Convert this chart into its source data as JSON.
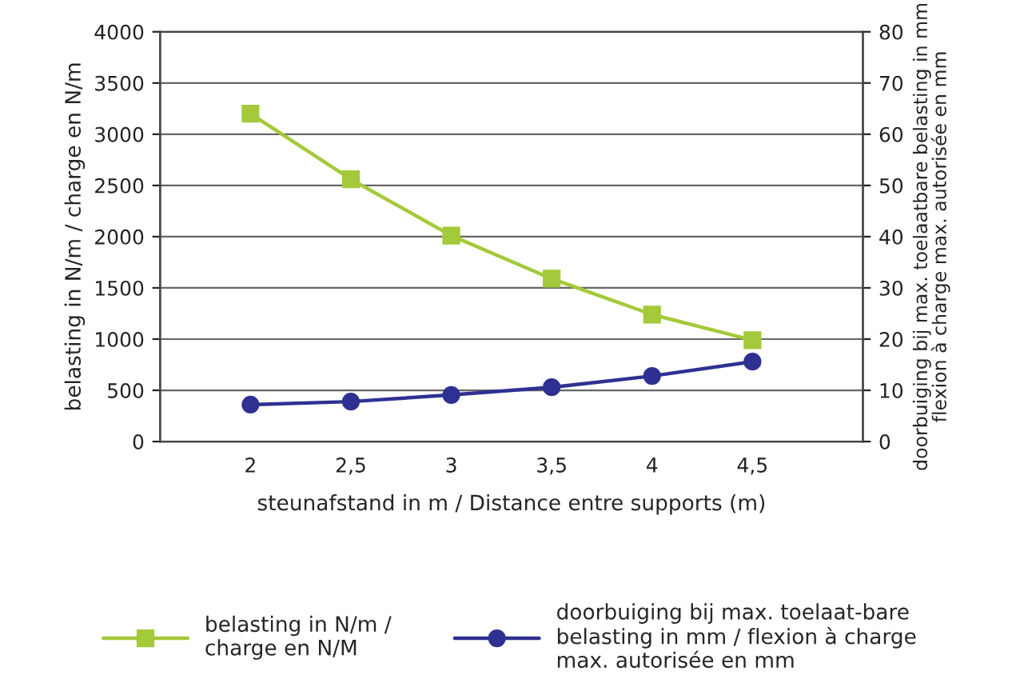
{
  "chart_data": {
    "type": "line",
    "x": [
      2,
      2.5,
      3,
      3.5,
      4,
      4.5
    ],
    "xlim": [
      1.55,
      5.05
    ],
    "xticks": [
      {
        "value": 2,
        "label": "2"
      },
      {
        "value": 2.5,
        "label": "2,5"
      },
      {
        "value": 3,
        "label": "3"
      },
      {
        "value": 3.5,
        "label": "3,5"
      },
      {
        "value": 4,
        "label": "4"
      },
      {
        "value": 4.5,
        "label": "4,5"
      }
    ],
    "ylim": [
      0,
      4000
    ],
    "yticks": [
      0,
      500,
      1000,
      1500,
      2000,
      2500,
      3000,
      3500,
      4000
    ],
    "y2lim": [
      0,
      80
    ],
    "y2ticks": [
      0,
      10,
      20,
      30,
      40,
      50,
      60,
      70,
      80
    ],
    "xlabel": "steunafstand in m / Distance entre supports (m)",
    "ylabel": "belasting in N/m / charge en N/m",
    "y2label": "doorbuiging bij max. toelaatbare belasting in mm\nflexion à charge max. autorisée en mm",
    "grid": "y",
    "legend": "bottom",
    "line_style": "solid",
    "series": [
      {
        "name": "belasting in N/m /\ncharge en N/M",
        "color": "#a4c93a",
        "marker": "square",
        "values": [
          3200,
          2560,
          2010,
          1590,
          1240,
          990
        ]
      },
      {
        "name": "doorbuiging bij max. toelaat-bare\nbelasting in mm / flexion à charge\nmax. autorisée en mm",
        "color": "#2e3191",
        "marker": "circle",
        "axis": "y2",
        "values": [
          7.2,
          7.8,
          9.1,
          10.6,
          12.8,
          15.6
        ]
      }
    ]
  }
}
